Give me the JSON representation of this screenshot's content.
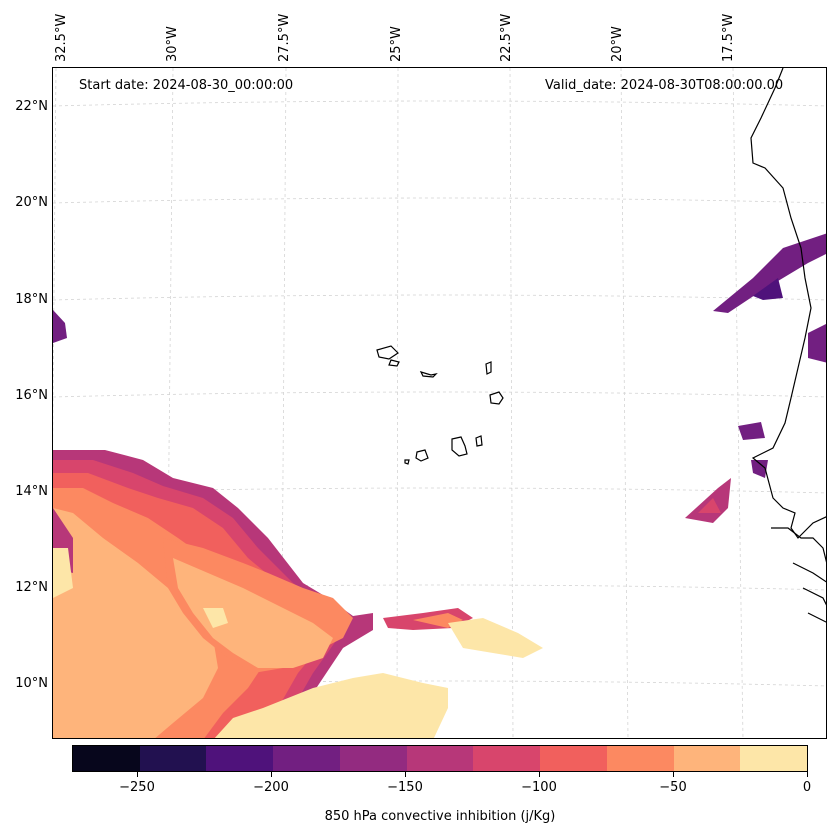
{
  "map": {
    "title_left": "Start date: 2024-08-30_00:00:00",
    "title_right": "Valid_date: 2024-08-30T08:00:00.00",
    "lat_labels": [
      "22°N",
      "20°N",
      "18°N",
      "16°N",
      "14°N",
      "12°N",
      "10°N"
    ],
    "lon_labels": [
      "32.5°W",
      "30°W",
      "27.5°W",
      "25°W",
      "22.5°W",
      "20°W",
      "17.5°W"
    ],
    "region": "Cabo Verde islands and West African coast (Mauritania, Senegal, Gambia, Guinea-Bissau)",
    "colors": {
      "coastline": "#000000",
      "gridline": "#cccccc",
      "frame": "#000000"
    }
  },
  "colorbar": {
    "label": "850 hPa convective inhibition (j/Kg)",
    "ticks": [
      "−250",
      "−200",
      "−150",
      "−100",
      "−50",
      "0"
    ],
    "tick_values": [
      -250,
      -200,
      -150,
      -100,
      -50,
      0
    ],
    "min": -275,
    "max": 0,
    "levels": [
      -275,
      -250,
      -225,
      -200,
      -175,
      -150,
      -125,
      -100,
      -75,
      -50,
      -25,
      0
    ],
    "colors": [
      "#07061c",
      "#221150",
      "#4f127b",
      "#721f81",
      "#932b80",
      "#b73779",
      "#d8456c",
      "#f1605d",
      "#fc8961",
      "#feb47b",
      "#fde6a8"
    ]
  }
}
